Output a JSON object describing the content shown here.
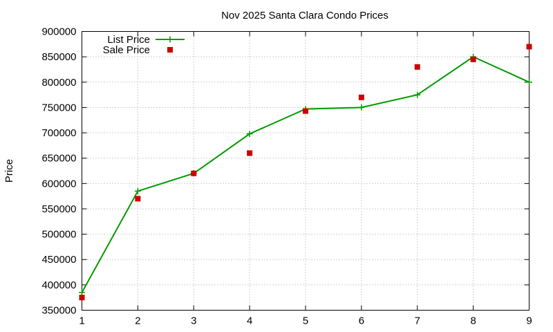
{
  "chart_data": {
    "type": "line",
    "title": "Nov 2025 Santa Clara Condo Prices",
    "xlabel": "",
    "ylabel": "Price",
    "x": [
      1,
      2,
      3,
      4,
      5,
      6,
      7,
      8,
      9
    ],
    "xlim": [
      1,
      9
    ],
    "ylim": [
      350000,
      900000
    ],
    "x_ticks": [
      "1",
      "2",
      "3",
      "4",
      "5",
      "6",
      "7",
      "8",
      "9"
    ],
    "y_ticks": [
      "350000",
      "400000",
      "450000",
      "500000",
      "550000",
      "600000",
      "650000",
      "700000",
      "750000",
      "800000",
      "850000",
      "900000"
    ],
    "grid": true,
    "legend_position": "top-left",
    "series": [
      {
        "name": "List Price",
        "style": "line-with-plus-markers",
        "color": "#009900",
        "values": [
          385000,
          585000,
          620000,
          698000,
          747000,
          750000,
          775000,
          850000,
          800000
        ]
      },
      {
        "name": "Sale Price",
        "style": "square-markers",
        "color": "#cc0000",
        "values": [
          375000,
          570000,
          620000,
          660000,
          743000,
          770000,
          830000,
          845000,
          870000
        ]
      }
    ]
  }
}
